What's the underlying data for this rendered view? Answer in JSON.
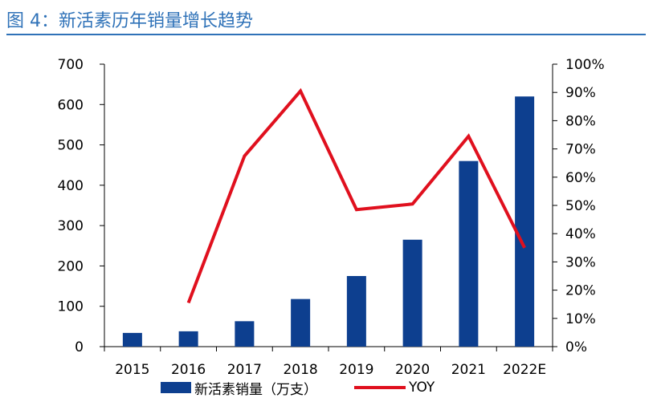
{
  "header": {
    "title": "图 4：新活素历年销量增长趋势"
  },
  "colors": {
    "title": "#2f72b8",
    "bar": "#0d3f8f",
    "line": "#e0101e",
    "axis": "#000000"
  },
  "chart_data": {
    "type": "bar",
    "categories": [
      "2015",
      "2016",
      "2017",
      "2018",
      "2019",
      "2020",
      "2021",
      "2022E"
    ],
    "series": [
      {
        "name": "新活素销量（万支）",
        "type": "bar",
        "axis": "left",
        "values": [
          34,
          38,
          63,
          118,
          175,
          265,
          460,
          620
        ]
      },
      {
        "name": "YOY",
        "type": "line",
        "axis": "right",
        "values": [
          null,
          15.5,
          67.5,
          90.5,
          48.5,
          50.5,
          74.5,
          35
        ]
      }
    ],
    "y_left": {
      "ylim": [
        0,
        700
      ],
      "ticks": [
        "0",
        "100",
        "200",
        "300",
        "400",
        "500",
        "600",
        "700"
      ]
    },
    "y_right": {
      "ylim": [
        0,
        100
      ],
      "ticks": [
        "0%",
        "10%",
        "20%",
        "30%",
        "40%",
        "50%",
        "60%",
        "70%",
        "80%",
        "90%",
        "100%"
      ]
    },
    "grid": false,
    "legend_position": "bottom"
  }
}
